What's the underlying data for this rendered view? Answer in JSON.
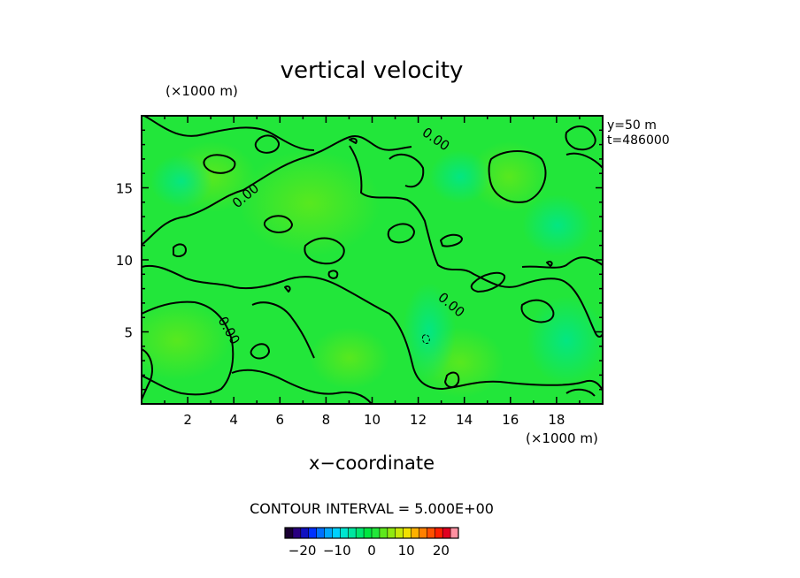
{
  "chart_data": {
    "type": "heatmap",
    "title": "vertical velocity",
    "xlabel": "x−coordinate",
    "x_unit": "(×1000 m)",
    "y_unit": "(×1000 m)",
    "xlim": [
      0,
      20
    ],
    "ylim": [
      0,
      20
    ],
    "x_ticks": [
      2,
      4,
      6,
      8,
      10,
      12,
      14,
      16,
      18
    ],
    "y_ticks": [
      5,
      10,
      15
    ],
    "annotations": [
      "y=50 m",
      "t=486000"
    ],
    "contour_label": "0.00",
    "contour_interval_text": "CONTOUR INTERVAL = 5.000E+00",
    "contour_interval": 5.0,
    "colorbar": {
      "range": [
        -25,
        25
      ],
      "tick_values": [
        -20,
        -10,
        0,
        10,
        20
      ],
      "tick_labels": [
        "−20",
        "−10",
        "0",
        "10",
        "20"
      ]
    },
    "field_note_colors": {
      "positive_patch": "#4ce61a",
      "negative_patch": "#00e66a",
      "base": "#22e63a"
    }
  }
}
